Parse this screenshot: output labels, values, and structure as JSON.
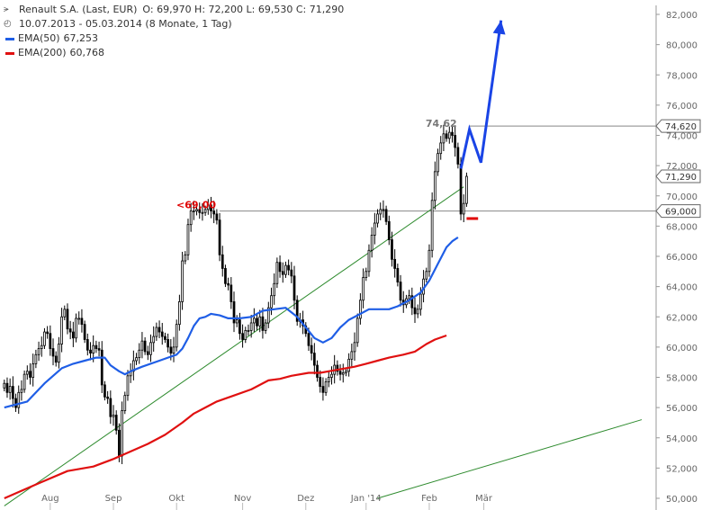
{
  "legend": {
    "title": "Renault S.A. (Last, EUR)",
    "ohlc": "O: 69,970  H: 72,200  L: 69,530  C: 71,290",
    "range": "10.07.2013 - 05.03.2014 (8 Monate, 1 Tag)",
    "ema50_label": "EMA(50)",
    "ema50_value": "67,253",
    "ema200_label": "EMA(200)",
    "ema200_value": "60,768"
  },
  "annotations": {
    "level_left": "<69,00",
    "level_top": "74,62"
  },
  "colors": {
    "candle": "#000000",
    "ema50": "#1f5ee6",
    "ema200": "#e01010",
    "trend": "#2e8b2e",
    "forecast": "#1a44e6",
    "level_line": "#888888",
    "level_text_red": "#e00000",
    "level_text_grey": "#777777"
  },
  "chart_data": {
    "type": "line",
    "y_axis": {
      "ylim": [
        50,
        82
      ],
      "ticks": [
        "50,000",
        "52,000",
        "54,000",
        "56,000",
        "58,000",
        "60,000",
        "62,000",
        "64,000",
        "66,000",
        "68,000",
        "70,000",
        "72,000",
        "74,000",
        "76,000",
        "78,000",
        "80,000",
        "82,000"
      ],
      "tick_values": [
        50,
        52,
        54,
        56,
        58,
        60,
        62,
        64,
        66,
        68,
        70,
        72,
        74,
        76,
        78,
        80,
        82
      ]
    },
    "x_axis": {
      "labels": [
        "Aug",
        "Sep",
        "Okt",
        "Nov",
        "Dez",
        "Jan '14",
        "Feb",
        "Mär"
      ],
      "label_index": [
        16,
        38,
        60,
        83,
        105,
        126,
        148,
        167
      ],
      "xlim": [
        -1.5,
        227
      ]
    },
    "price_callouts": [
      {
        "label": "74,620",
        "value": 74.62
      },
      {
        "label": "71,290",
        "value": 71.29,
        "current": true
      },
      {
        "label": "69,000",
        "value": 69.0
      }
    ],
    "horizontal_levels": [
      {
        "value": 74.62,
        "from_index": 162
      },
      {
        "value": 69.0,
        "from_index": 75
      }
    ],
    "close": [
      57.6,
      57.0,
      57.4,
      56.6,
      56.0,
      57.0,
      57.2,
      58.2,
      58.4,
      58.0,
      58.9,
      59.5,
      59.9,
      60.1,
      61.0,
      60.9,
      59.9,
      59.4,
      59.0,
      60.2,
      62.0,
      62.5,
      61.2,
      61.0,
      60.6,
      61.9,
      61.9,
      61.5,
      60.5,
      59.8,
      59.6,
      60.1,
      59.9,
      59.8,
      57.5,
      56.7,
      56.6,
      55.4,
      55.5,
      54.5,
      52.8,
      55.8,
      56.8,
      58.1,
      58.4,
      59.1,
      59.3,
      59.8,
      60.4,
      59.7,
      59.5,
      60.3,
      60.7,
      61.3,
      61.0,
      60.7,
      60.5,
      60.0,
      59.6,
      60.0,
      61.5,
      63.0,
      65.7,
      66.1,
      68.1,
      69.0,
      69.0,
      69.1,
      68.9,
      68.9,
      69.1,
      69.4,
      69.0,
      68.8,
      68.4,
      66.1,
      65.2,
      64.2,
      64.1,
      63.0,
      61.6,
      61.8,
      60.9,
      60.5,
      61.1,
      61.1,
      61.6,
      61.9,
      61.4,
      62.0,
      61.1,
      61.6,
      62.6,
      63.4,
      64.2,
      65.6,
      65.0,
      64.8,
      65.4,
      65.1,
      64.7,
      63.1,
      61.7,
      61.8,
      61.4,
      60.9,
      60.1,
      59.6,
      58.8,
      58.0,
      57.4,
      57.0,
      57.7,
      58.0,
      58.2,
      58.8,
      58.4,
      58.2,
      58.3,
      58.4,
      59.2,
      59.7,
      60.3,
      61.9,
      63.1,
      64.6,
      65.0,
      66.4,
      67.4,
      68.2,
      68.8,
      69.1,
      69.1,
      68.3,
      67.1,
      65.8,
      65.2,
      64.3,
      63.1,
      62.8,
      63.2,
      63.4,
      62.6,
      62.2,
      62.5,
      63.5,
      64.5,
      65.0,
      66.4,
      69.7,
      71.6,
      72.8,
      73.5,
      74.1,
      73.8,
      74.2,
      74.0,
      73.2,
      72.1,
      68.8,
      69.5,
      71.29
    ],
    "series": [
      {
        "name": "EMA(50)",
        "values": [
          [
            0,
            56.0
          ],
          [
            8,
            56.4
          ],
          [
            14,
            57.6
          ],
          [
            20,
            58.6
          ],
          [
            24,
            58.9
          ],
          [
            28,
            59.1
          ],
          [
            32,
            59.3
          ],
          [
            35,
            59.3
          ],
          [
            37,
            58.8
          ],
          [
            40,
            58.4
          ],
          [
            42,
            58.2
          ],
          [
            44,
            58.4
          ],
          [
            48,
            58.7
          ],
          [
            54,
            59.1
          ],
          [
            57,
            59.3
          ],
          [
            60,
            59.5
          ],
          [
            62,
            59.9
          ],
          [
            64,
            60.6
          ],
          [
            66,
            61.4
          ],
          [
            68,
            61.9
          ],
          [
            70,
            62.0
          ],
          [
            72,
            62.2
          ],
          [
            75,
            62.1
          ],
          [
            78,
            61.9
          ],
          [
            82,
            61.9
          ],
          [
            86,
            62.0
          ],
          [
            90,
            62.4
          ],
          [
            94,
            62.5
          ],
          [
            98,
            62.6
          ],
          [
            100,
            62.3
          ],
          [
            102,
            62.0
          ],
          [
            105,
            61.3
          ],
          [
            108,
            60.6
          ],
          [
            111,
            60.3
          ],
          [
            114,
            60.6
          ],
          [
            117,
            61.3
          ],
          [
            120,
            61.8
          ],
          [
            123,
            62.1
          ],
          [
            127,
            62.5
          ],
          [
            130,
            62.5
          ],
          [
            134,
            62.5
          ],
          [
            137,
            62.7
          ],
          [
            141,
            63.1
          ],
          [
            145,
            63.6
          ],
          [
            148,
            64.4
          ],
          [
            151,
            65.5
          ],
          [
            154,
            66.6
          ],
          [
            156,
            67.0
          ],
          [
            158,
            67.253
          ]
        ]
      },
      {
        "name": "EMA(200)",
        "values": [
          [
            0,
            50.0
          ],
          [
            12,
            51.0
          ],
          [
            22,
            51.8
          ],
          [
            31,
            52.1
          ],
          [
            38,
            52.6
          ],
          [
            44,
            53.1
          ],
          [
            50,
            53.6
          ],
          [
            56,
            54.2
          ],
          [
            62,
            55.0
          ],
          [
            66,
            55.6
          ],
          [
            70,
            56.0
          ],
          [
            74,
            56.4
          ],
          [
            80,
            56.8
          ],
          [
            86,
            57.2
          ],
          [
            92,
            57.8
          ],
          [
            96,
            57.9
          ],
          [
            100,
            58.1
          ],
          [
            106,
            58.3
          ],
          [
            110,
            58.3
          ],
          [
            116,
            58.5
          ],
          [
            122,
            58.7
          ],
          [
            126,
            58.9
          ],
          [
            130,
            59.1
          ],
          [
            134,
            59.3
          ],
          [
            139,
            59.5
          ],
          [
            143,
            59.7
          ],
          [
            147,
            60.2
          ],
          [
            150,
            60.5
          ],
          [
            154,
            60.768
          ]
        ]
      },
      {
        "name": "",
        "values": [
          [
            0,
            49.5
          ],
          [
            160,
            70.6
          ]
        ]
      },
      {
        "name": "",
        "values": [
          [
            130,
            50.0
          ],
          [
            222,
            55.2
          ]
        ]
      }
    ],
    "forecast": [
      [
        159,
        71.8
      ],
      [
        162,
        74.4
      ],
      [
        166,
        72.2
      ],
      [
        173,
        81.6
      ]
    ],
    "forecast_level": {
      "value": 68.5,
      "from_index": 161,
      "to_index": 165
    }
  }
}
